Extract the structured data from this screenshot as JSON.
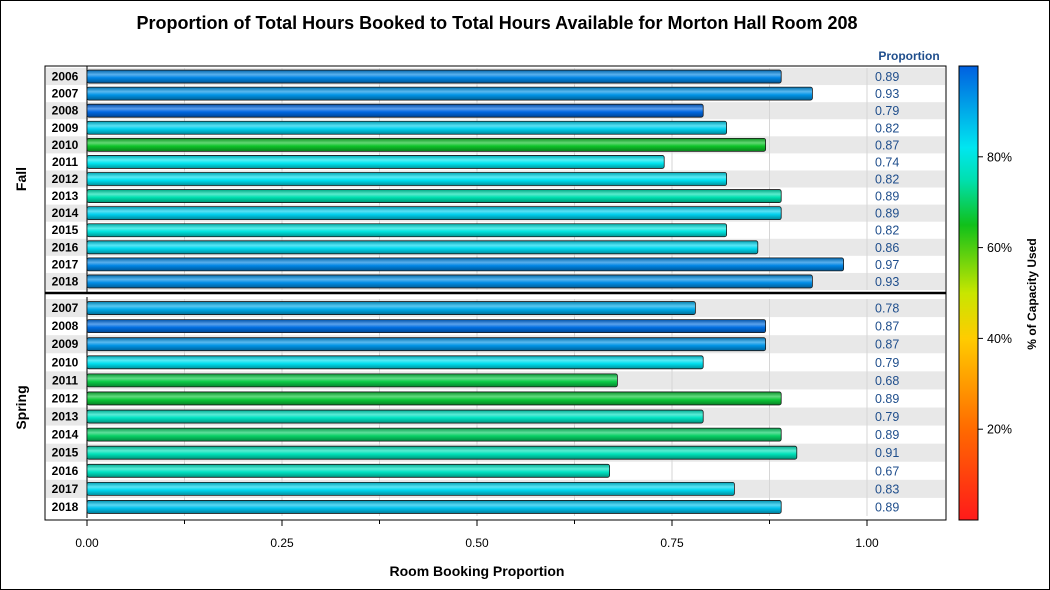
{
  "chart_data": {
    "type": "bar",
    "orientation": "horizontal",
    "title": "Proportion of Total Hours Booked to Total Hours Available for Morton Hall Room 208",
    "xlabel": "Room Booking Proportion",
    "value_column_header": "Proportion",
    "xlim": [
      0,
      1.1
    ],
    "xticks": [
      "0.00",
      "0.25",
      "0.50",
      "0.75",
      "1.00"
    ],
    "xtick_values": [
      0,
      0.25,
      0.5,
      0.75,
      1.0
    ],
    "grid": true,
    "colorbar": {
      "title": "% of Capacity Used",
      "ticks": [
        "20%",
        "40%",
        "60%",
        "80%"
      ],
      "tick_values": [
        20,
        40,
        60,
        80
      ],
      "range": [
        0,
        100
      ],
      "stops": [
        {
          "value": 0,
          "color": "#ff1a1a"
        },
        {
          "value": 20,
          "color": "#ff6a00"
        },
        {
          "value": 40,
          "color": "#ffcc00"
        },
        {
          "value": 50,
          "color": "#c8e600"
        },
        {
          "value": 65,
          "color": "#10c01a"
        },
        {
          "value": 75,
          "color": "#00e0b0"
        },
        {
          "value": 82,
          "color": "#00e6f0"
        },
        {
          "value": 100,
          "color": "#0060e0"
        }
      ]
    },
    "groups": [
      {
        "name": "Fall",
        "rows": [
          {
            "year": "2006",
            "value": 0.89,
            "label": "0.89",
            "capacity": 95
          },
          {
            "year": "2007",
            "value": 0.93,
            "label": "0.93",
            "capacity": 93
          },
          {
            "year": "2008",
            "value": 0.79,
            "label": "0.79",
            "capacity": 99
          },
          {
            "year": "2009",
            "value": 0.82,
            "label": "0.82",
            "capacity": 85
          },
          {
            "year": "2010",
            "value": 0.87,
            "label": "0.87",
            "capacity": 66
          },
          {
            "year": "2011",
            "value": 0.74,
            "label": "0.74",
            "capacity": 82
          },
          {
            "year": "2012",
            "value": 0.82,
            "label": "0.82",
            "capacity": 83
          },
          {
            "year": "2013",
            "value": 0.89,
            "label": "0.89",
            "capacity": 75
          },
          {
            "year": "2014",
            "value": 0.89,
            "label": "0.89",
            "capacity": 85
          },
          {
            "year": "2015",
            "value": 0.82,
            "label": "0.82",
            "capacity": 80
          },
          {
            "year": "2016",
            "value": 0.86,
            "label": "0.86",
            "capacity": 84
          },
          {
            "year": "2017",
            "value": 0.97,
            "label": "0.97",
            "capacity": 95
          },
          {
            "year": "2018",
            "value": 0.93,
            "label": "0.93",
            "capacity": 94
          }
        ]
      },
      {
        "name": "Spring",
        "rows": [
          {
            "year": "2007",
            "value": 0.78,
            "label": "0.78",
            "capacity": 90
          },
          {
            "year": "2008",
            "value": 0.87,
            "label": "0.87",
            "capacity": 98
          },
          {
            "year": "2009",
            "value": 0.87,
            "label": "0.87",
            "capacity": 93
          },
          {
            "year": "2010",
            "value": 0.79,
            "label": "0.79",
            "capacity": 83
          },
          {
            "year": "2011",
            "value": 0.68,
            "label": "0.68",
            "capacity": 68
          },
          {
            "year": "2012",
            "value": 0.89,
            "label": "0.89",
            "capacity": 67
          },
          {
            "year": "2013",
            "value": 0.79,
            "label": "0.79",
            "capacity": 77
          },
          {
            "year": "2014",
            "value": 0.89,
            "label": "0.89",
            "capacity": 70
          },
          {
            "year": "2015",
            "value": 0.91,
            "label": "0.91",
            "capacity": 76
          },
          {
            "year": "2016",
            "value": 0.67,
            "label": "0.67",
            "capacity": 77
          },
          {
            "year": "2017",
            "value": 0.83,
            "label": "0.83",
            "capacity": 84
          },
          {
            "year": "2018",
            "value": 0.89,
            "label": "0.89",
            "capacity": 87
          }
        ]
      }
    ]
  }
}
